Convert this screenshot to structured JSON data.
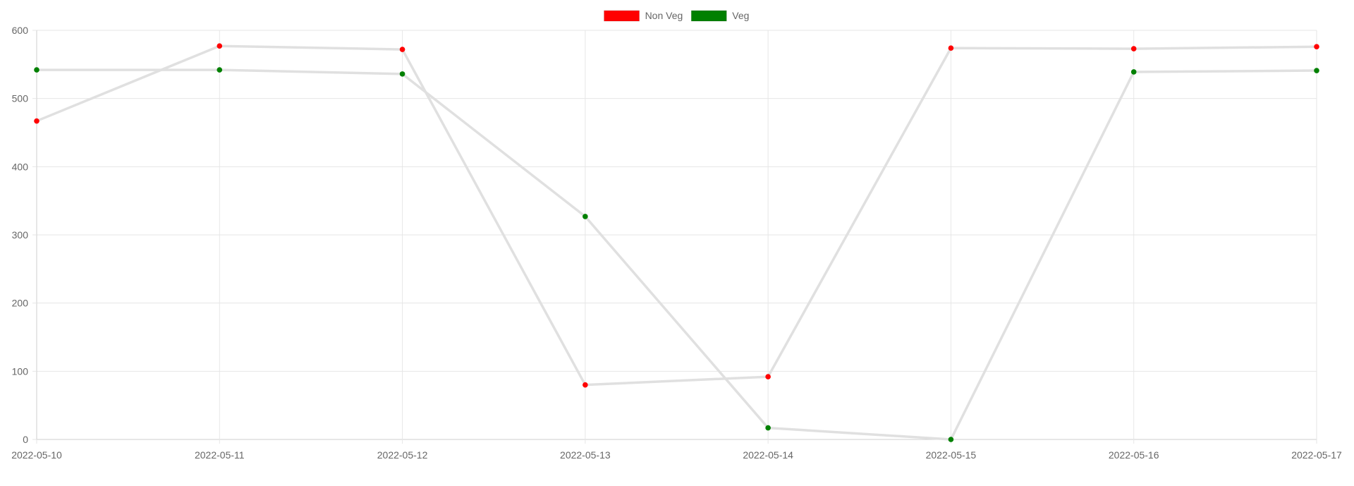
{
  "chart_data": {
    "type": "line",
    "categories": [
      "2022-05-10",
      "2022-05-11",
      "2022-05-12",
      "2022-05-13",
      "2022-05-14",
      "2022-05-15",
      "2022-05-16",
      "2022-05-17"
    ],
    "series": [
      {
        "name": "Non Veg",
        "color": "#ff0000",
        "values": [
          467,
          577,
          572,
          80,
          92,
          574,
          573,
          576
        ]
      },
      {
        "name": "Veg",
        "color": "#008000",
        "values": [
          542,
          542,
          536,
          327,
          17,
          0,
          539,
          541
        ]
      }
    ],
    "line_color": "#e0e0e0",
    "ylim": [
      0,
      600
    ],
    "yticks": [
      0,
      100,
      200,
      300,
      400,
      500,
      600
    ],
    "grid": true,
    "legend": "top-center"
  }
}
